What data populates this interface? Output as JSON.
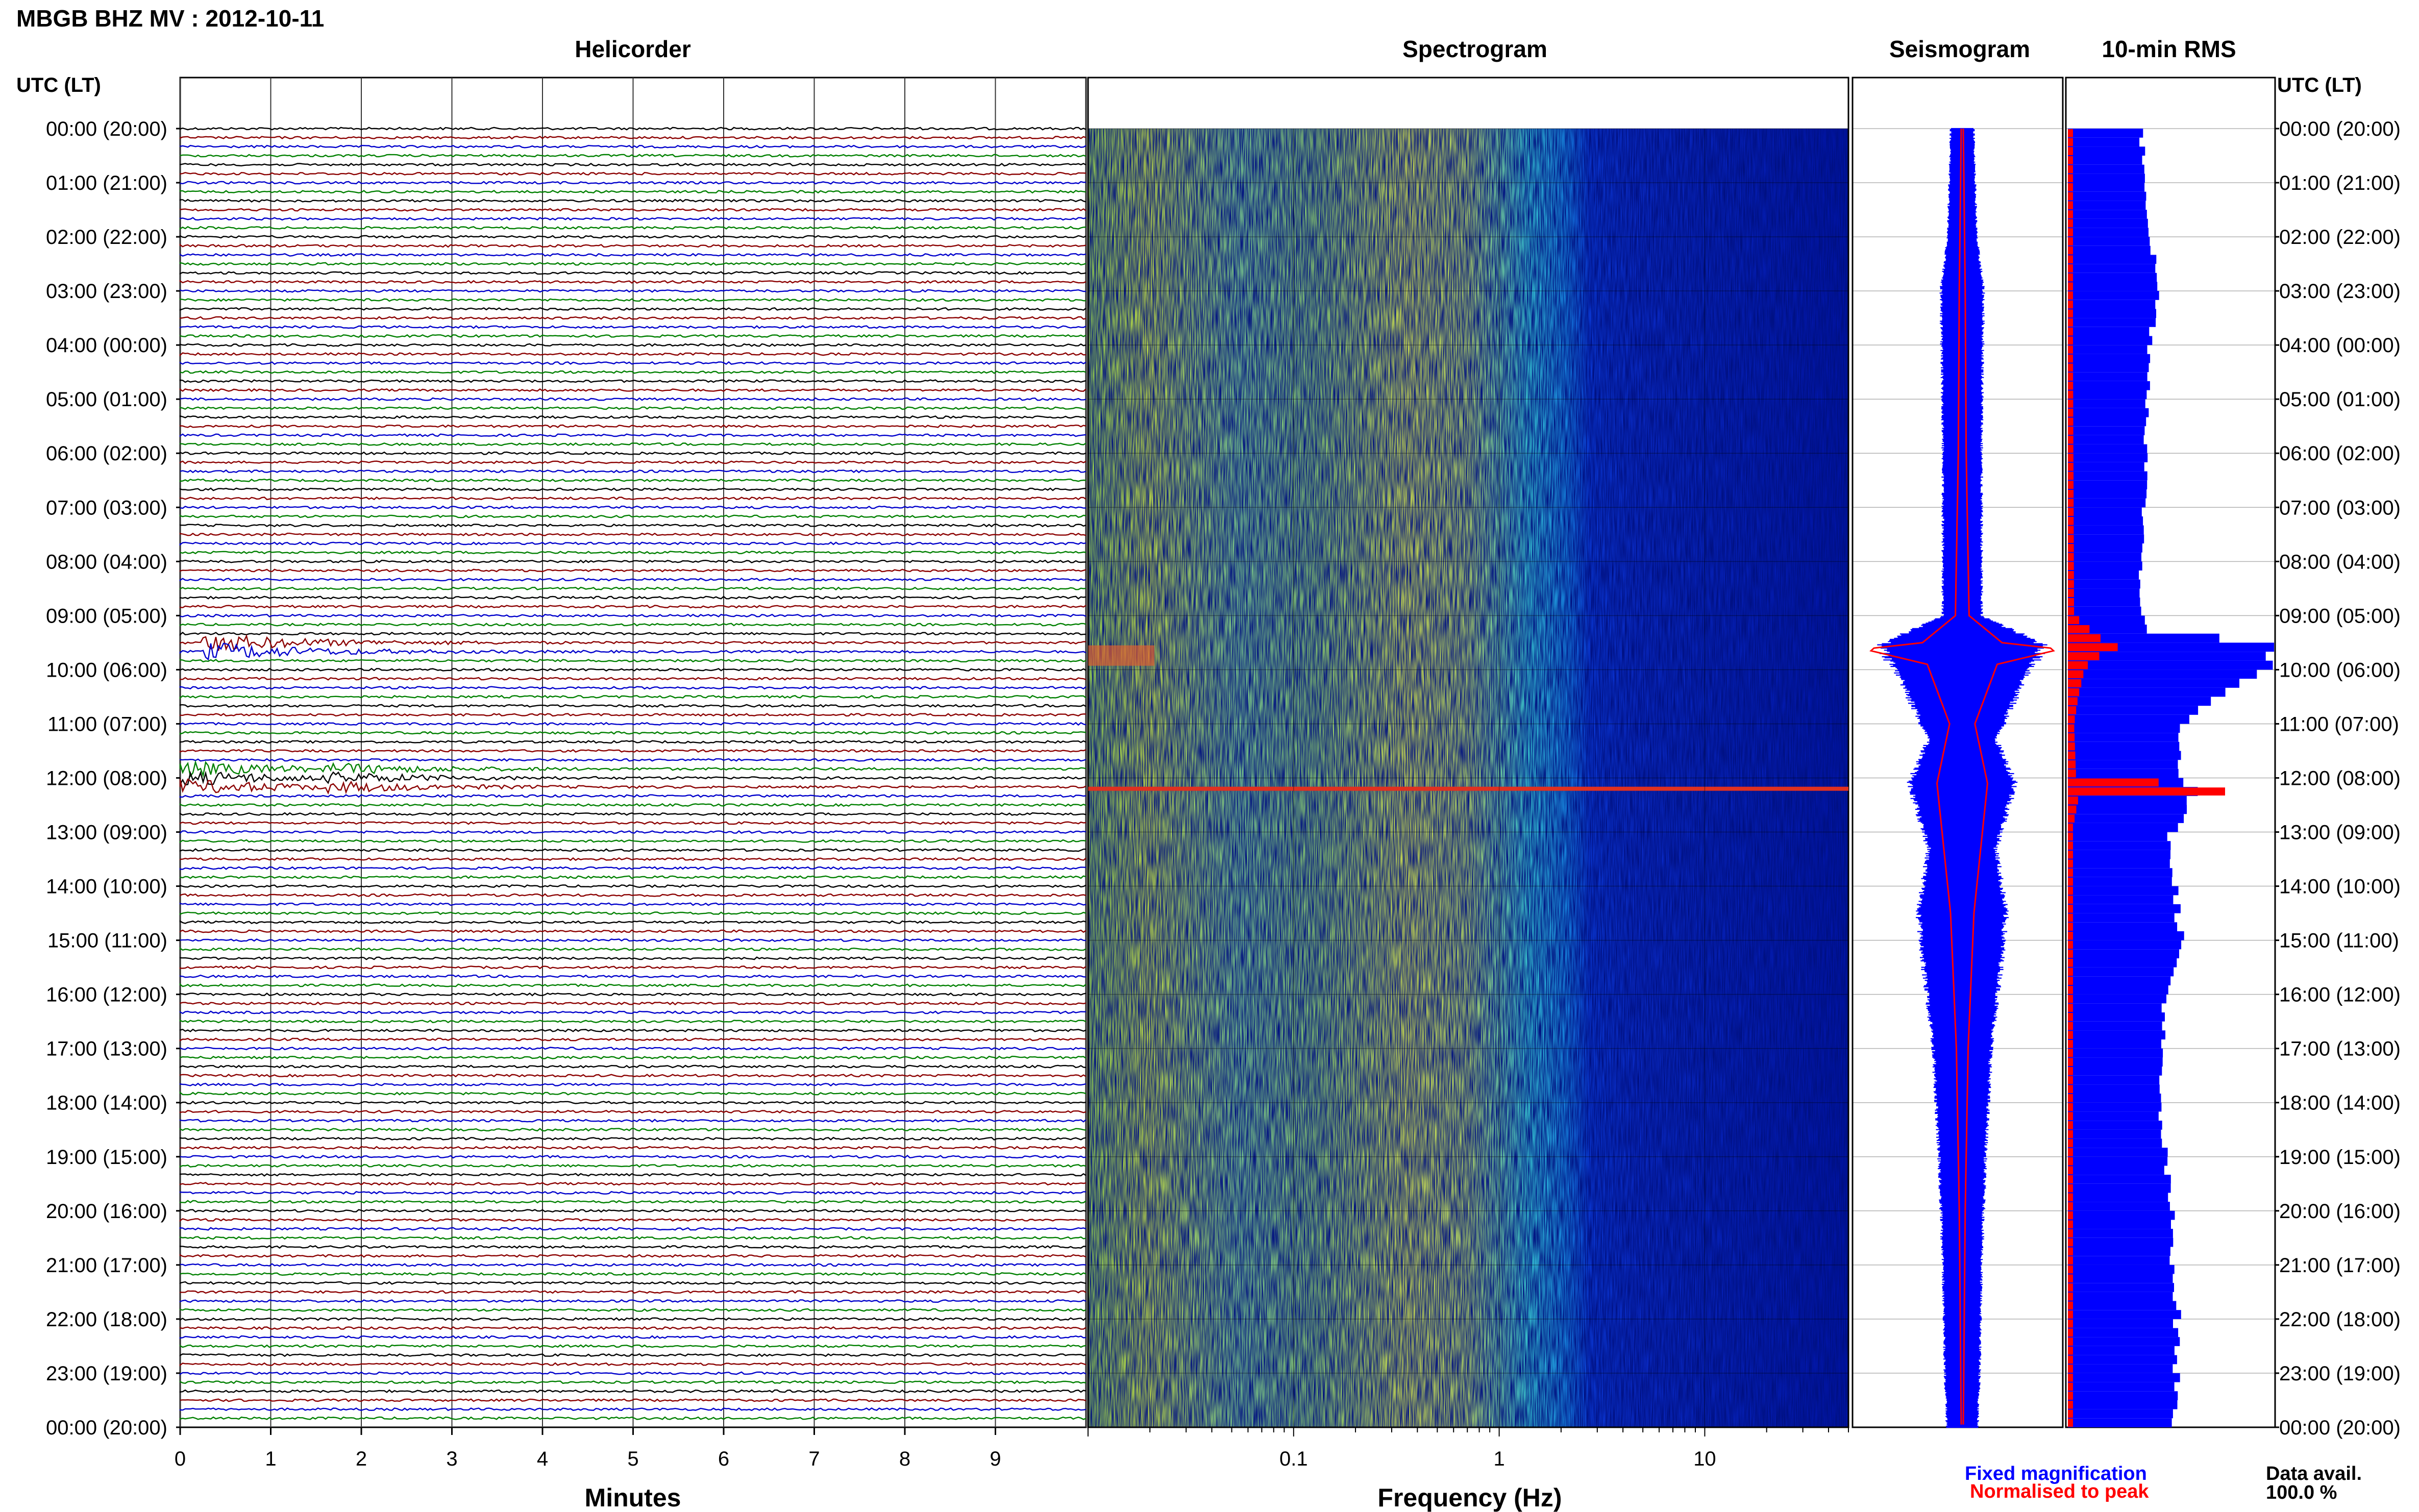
{
  "page": {
    "title": "MBGB BHZ MV : 2012-10-11",
    "time_axis_label": "UTC (LT)",
    "data_avail_label": "Data avail.",
    "data_avail_value": "100.0 %"
  },
  "panels": {
    "helicorder_title": "Helicorder",
    "spectrogram_title": "Spectrogram",
    "seismogram_title": "Seismogram",
    "rms_title": "10-min RMS"
  },
  "legend": {
    "fixed_label": "Fixed magnification",
    "normalised_label": "Normalised to peak"
  },
  "colors": {
    "trace_cycle": [
      "#000000",
      "#8b0000",
      "#0000cc",
      "#008000"
    ],
    "fixed": "#0000ff",
    "normalised": "#ff0000",
    "spectrogram_low": "#0014a8",
    "spectrogram_high": "#ffff00"
  },
  "chart_data": [
    {
      "type": "line",
      "panel": "helicorder",
      "xlabel": "Minutes",
      "x_ticks": [
        "0",
        "1",
        "2",
        "3",
        "4",
        "5",
        "6",
        "7",
        "8",
        "9"
      ],
      "xlim": [
        0,
        10
      ],
      "rows_per_hour": 6,
      "y_ticks": [
        "00:00 (20:00)",
        "01:00 (21:00)",
        "02:00 (22:00)",
        "03:00 (23:00)",
        "04:00 (00:00)",
        "05:00 (01:00)",
        "06:00 (02:00)",
        "07:00 (03:00)",
        "08:00 (04:00)",
        "09:00 (05:00)",
        "10:00 (06:00)",
        "11:00 (07:00)",
        "12:00 (08:00)",
        "13:00 (09:00)",
        "14:00 (10:00)",
        "15:00 (11:00)",
        "16:00 (12:00)",
        "17:00 (13:00)",
        "18:00 (14:00)",
        "19:00 (15:00)",
        "20:00 (16:00)",
        "21:00 (17:00)",
        "22:00 (18:00)",
        "23:00 (19:00)",
        "00:00 (20:00)"
      ],
      "events": [
        {
          "hour": 9.6,
          "minute": 0.4,
          "amplitude": 7
        },
        {
          "hour": 12.0,
          "minute": 0.1,
          "amplitude": 6
        },
        {
          "hour": 12.0,
          "minute": 1.8,
          "amplitude": 3
        }
      ]
    },
    {
      "type": "heatmap",
      "panel": "spectrogram",
      "xlabel": "Frequency (Hz)",
      "xscale": "log",
      "xlim": [
        0.01,
        50
      ],
      "x_ticks": [
        "0.1",
        "1",
        "10"
      ],
      "bright_hour": 12.2
    },
    {
      "type": "line",
      "panel": "seismogram",
      "series": [
        {
          "name": "Fixed magnification",
          "hours": [
            0,
            2,
            3,
            6,
            9,
            9.55,
            10.3,
            11.3,
            12.1,
            13.3,
            14.5,
            15.5,
            17,
            19,
            21,
            23,
            24
          ],
          "values": [
            0.12,
            0.15,
            0.22,
            0.2,
            0.2,
            0.85,
            0.6,
            0.35,
            0.55,
            0.35,
            0.45,
            0.4,
            0.3,
            0.24,
            0.2,
            0.18,
            0.16
          ]
        },
        {
          "name": "Normalised to peak",
          "hours": [
            0,
            3,
            6,
            9,
            9.5,
            9.62,
            9.9,
            11,
            12.1,
            14.5,
            17,
            20,
            24
          ],
          "values": [
            0,
            0.02,
            0.03,
            0.06,
            0.4,
            1.0,
            0.35,
            0.12,
            0.25,
            0.11,
            0.05,
            0.02,
            0
          ]
        }
      ]
    },
    {
      "type": "bar",
      "panel": "10-min RMS",
      "series": [
        {
          "name": "Fixed magnification",
          "hours": [
            0,
            1,
            2,
            3,
            3.5,
            4,
            6,
            8,
            9,
            9.3,
            9.5,
            10,
            10.5,
            11,
            12,
            12.3,
            13,
            14,
            15,
            16,
            17,
            18,
            19,
            20,
            22,
            24
          ],
          "values": [
            0.35,
            0.38,
            0.4,
            0.44,
            0.42,
            0.4,
            0.38,
            0.36,
            0.35,
            0.4,
            1.0,
            0.95,
            0.75,
            0.55,
            0.55,
            0.62,
            0.5,
            0.52,
            0.55,
            0.48,
            0.45,
            0.44,
            0.47,
            0.5,
            0.53,
            0.52
          ]
        },
        {
          "name": "Normalised to peak",
          "hours": [
            0,
            9,
            9.4,
            9.6,
            9.8,
            10,
            10.5,
            11,
            12,
            12.2,
            12.4,
            13,
            24
          ],
          "values": [
            0.02,
            0.03,
            0.15,
            0.25,
            0.12,
            0.08,
            0.05,
            0.03,
            0.04,
            1.0,
            0.05,
            0.02,
            0.02
          ]
        }
      ]
    }
  ]
}
